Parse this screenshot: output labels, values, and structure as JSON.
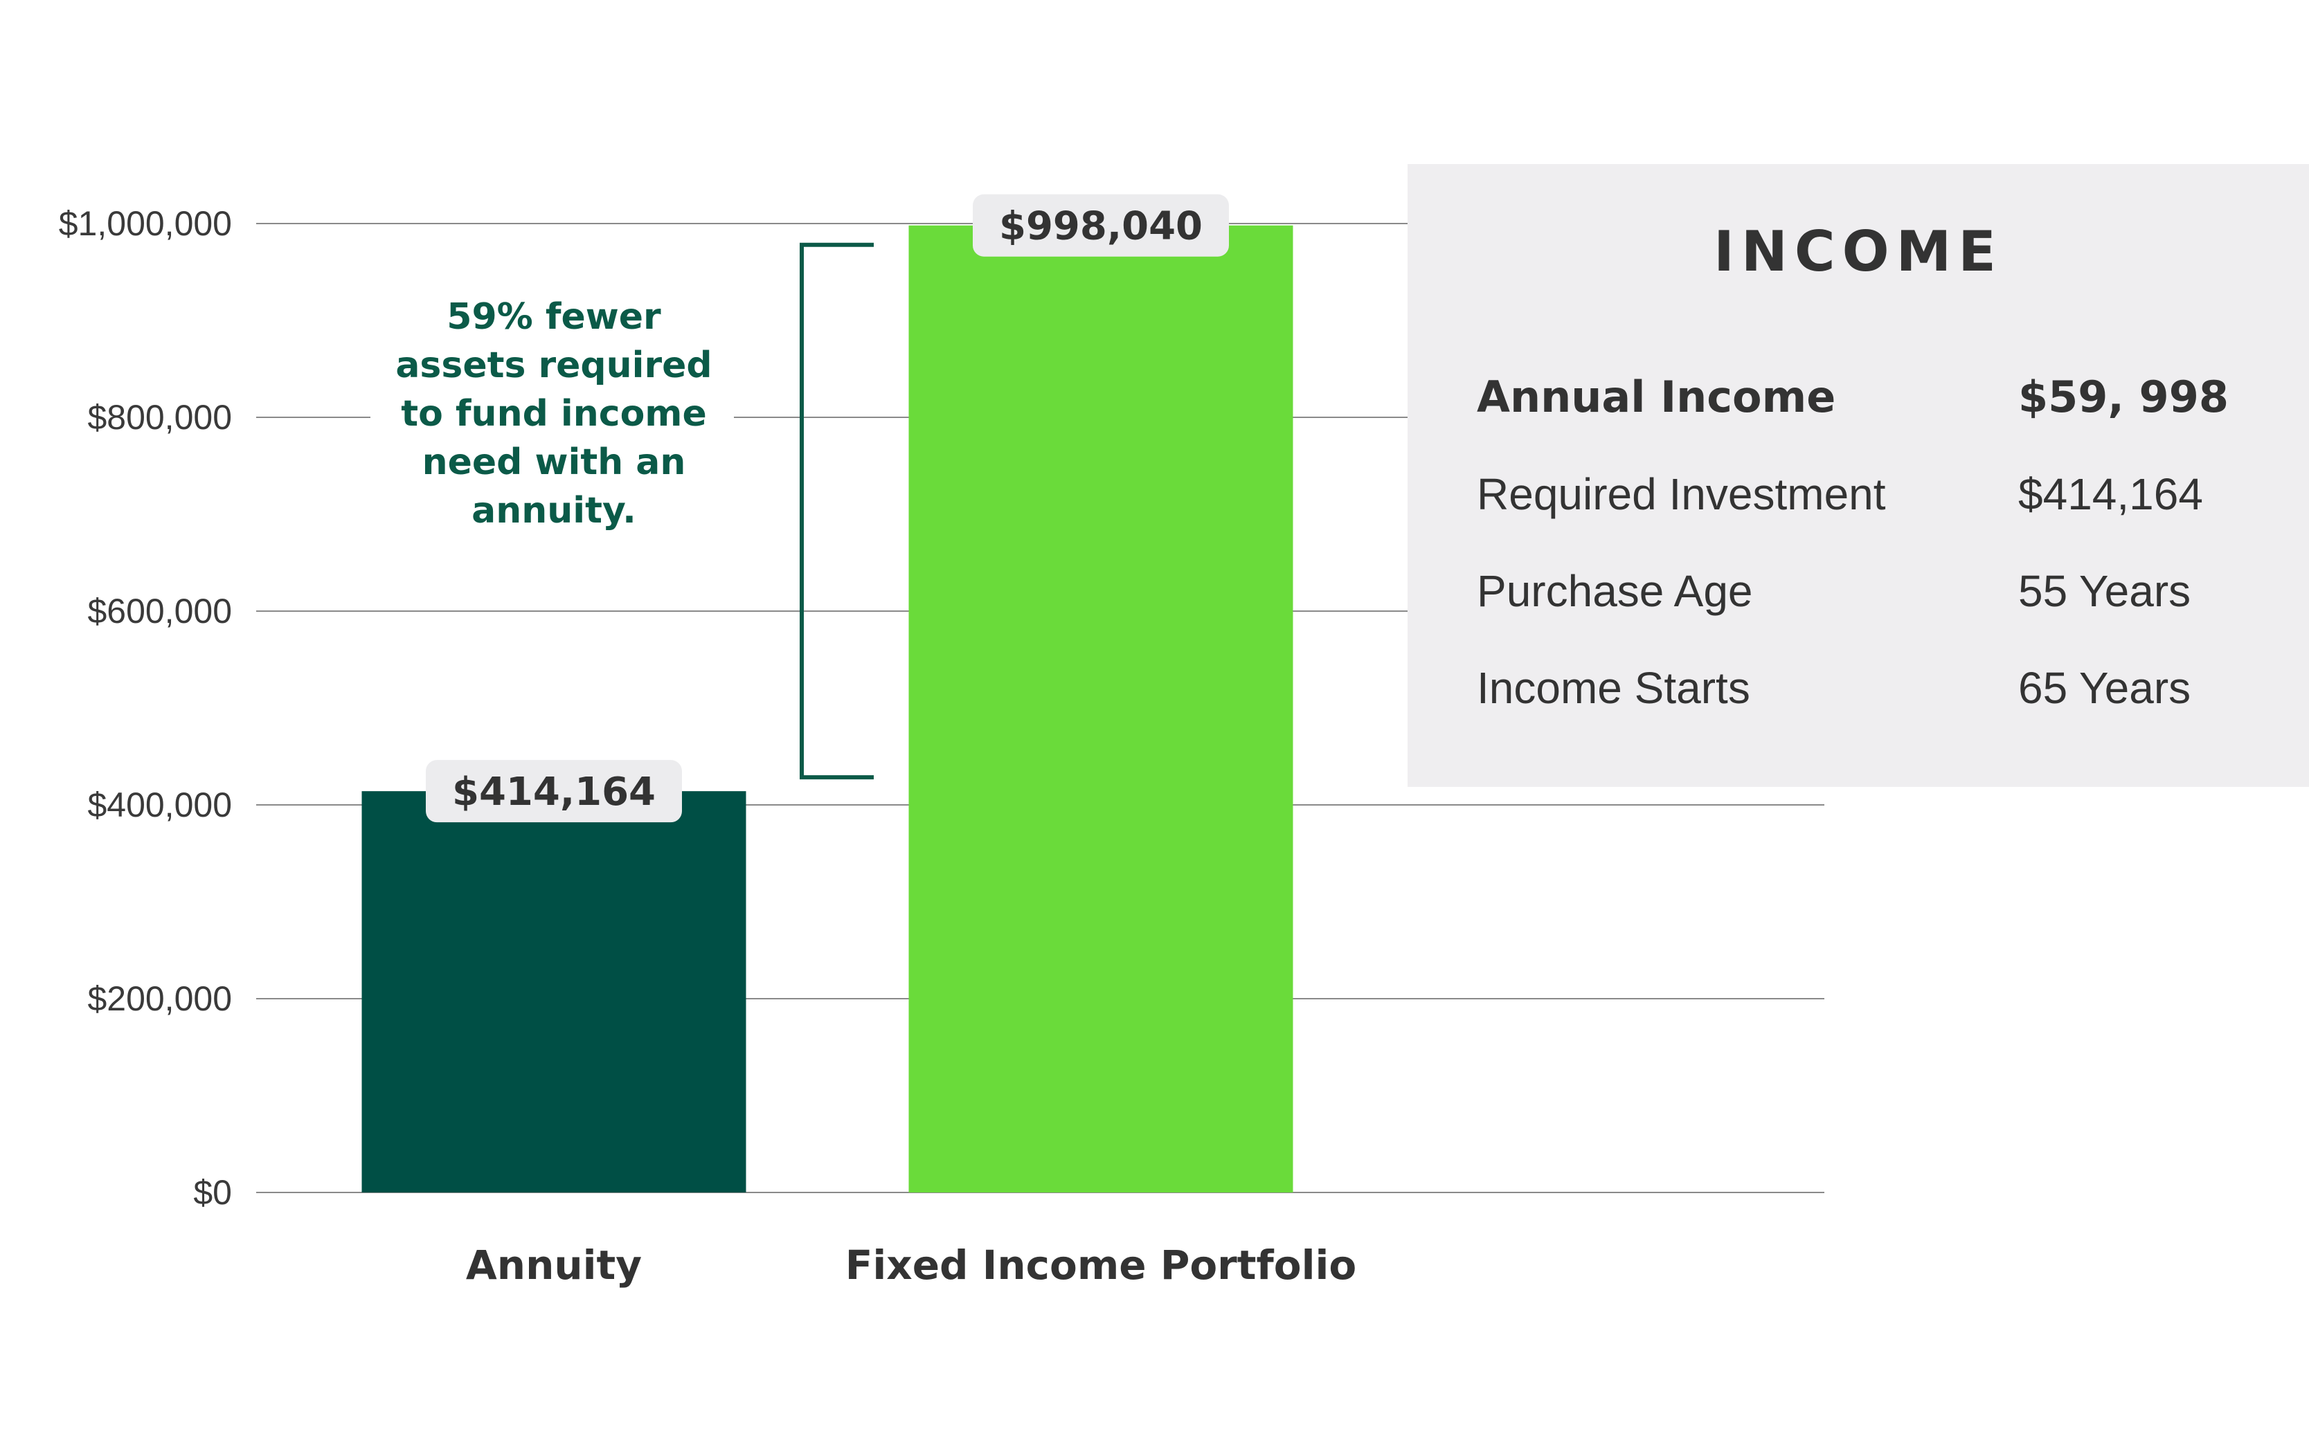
{
  "chart_data": {
    "type": "bar",
    "categories": [
      "Annuity",
      "Fixed Income Portfolio"
    ],
    "values": [
      414164,
      998040
    ],
    "value_labels": [
      "$414,164",
      "$998,040"
    ],
    "colors": [
      "#004f45",
      "#6adb3a"
    ],
    "ylim": [
      0,
      1000000
    ],
    "yticks": [
      0,
      200000,
      400000,
      600000,
      800000,
      1000000
    ],
    "ytick_labels": [
      "$0",
      "$200,000",
      "$400,000",
      "$600,000",
      "$800,000",
      "$1,000,000"
    ],
    "grid": true,
    "annotation": {
      "lines": [
        "59% fewer",
        "assets required",
        "to fund income",
        "need with an",
        "annuity."
      ],
      "color": "#0b5a48"
    }
  },
  "income": {
    "title": "INCOME",
    "rows": [
      {
        "label": "Annual Income",
        "value": "$59, 998"
      },
      {
        "label": "Required Investment",
        "value": "$414,164"
      },
      {
        "label": "Purchase Age",
        "value": "55 Years"
      },
      {
        "label": "Income Starts",
        "value": "65 Years"
      }
    ]
  }
}
